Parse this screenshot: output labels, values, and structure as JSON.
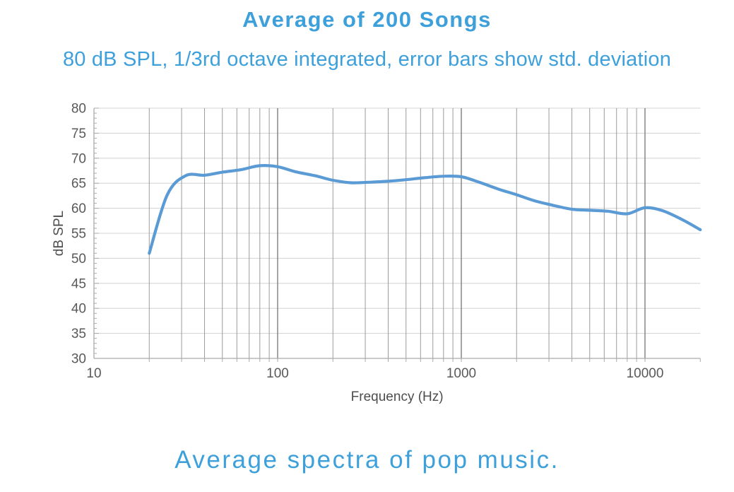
{
  "header": {
    "title": "Average of 200 Songs",
    "subtitle": "80 dB SPL, 1/3rd octave integrated, error bars show std. deviation"
  },
  "caption": "Average spectra of pop music.",
  "colors": {
    "accent_text": "#3EA0DB",
    "line": "#5B9BD5",
    "grid_horizontal": "#d6d6d6",
    "grid_vertical_minor": "#9b9b9b",
    "grid_vertical_major": "#7d7d7d",
    "axis": "#aaaaaa",
    "tick_text": "#595959",
    "axis_title_text": "#4d4d4d"
  },
  "chart_data": {
    "type": "line",
    "title": "Average of 200 Songs",
    "subtitle": "80 dB SPL, 1/3rd octave integrated, error bars show std. deviation",
    "xlabel": "Frequency (Hz)",
    "ylabel": "dB SPL",
    "xscale": "log",
    "xlim": [
      10,
      20000
    ],
    "ylim": [
      30,
      80
    ],
    "xticks": [
      10,
      100,
      1000,
      10000
    ],
    "xtick_labels": [
      "10",
      "100",
      "1000",
      "10000"
    ],
    "yticks": [
      30,
      35,
      40,
      45,
      50,
      55,
      60,
      65,
      70,
      75,
      80
    ],
    "grid": true,
    "legend": false,
    "line_color": "#5B9BD5",
    "x": [
      20,
      25,
      31.5,
      40,
      50,
      63,
      80,
      100,
      125,
      160,
      200,
      250,
      315,
      400,
      500,
      630,
      800,
      1000,
      1250,
      1600,
      2000,
      2500,
      3150,
      4000,
      5000,
      6300,
      8000,
      10000,
      12500,
      16000,
      20000
    ],
    "y": [
      51.0,
      62.6,
      66.5,
      66.6,
      67.2,
      67.7,
      68.5,
      68.3,
      67.3,
      66.5,
      65.6,
      65.1,
      65.2,
      65.4,
      65.7,
      66.1,
      66.4,
      66.3,
      65.2,
      63.8,
      62.7,
      61.5,
      60.6,
      59.8,
      59.6,
      59.4,
      58.9,
      60.1,
      59.5,
      57.7,
      55.7
    ]
  }
}
